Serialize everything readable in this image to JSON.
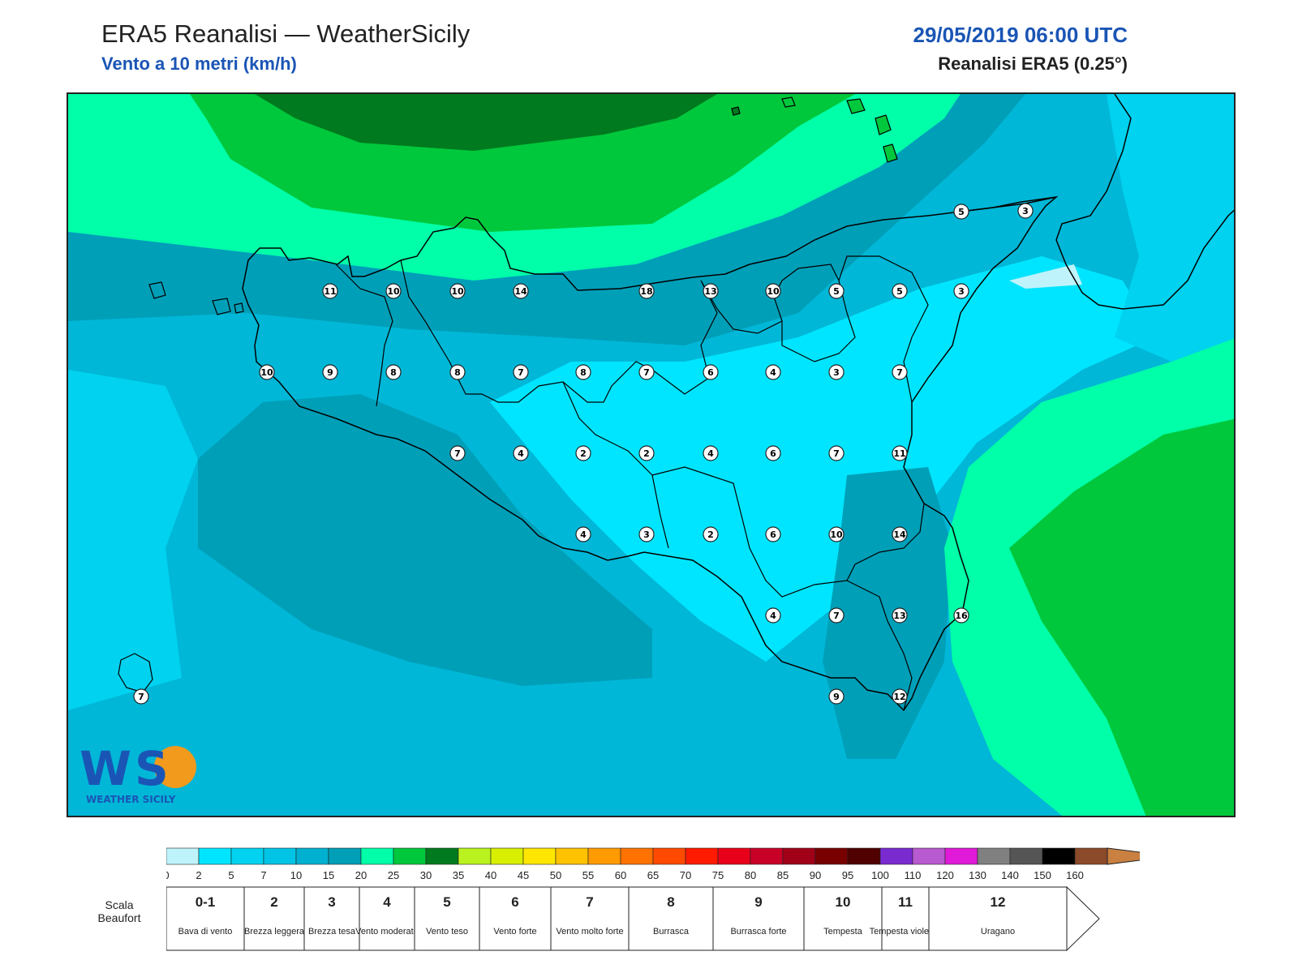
{
  "header": {
    "title": "ERA5 Reanalisi — WeatherSicily",
    "subtitle": "Vento a 10 metri (km/h)",
    "datetime": "29/05/2019 06:00 UTC",
    "model": "Reanalisi ERA5 (0.25°)"
  },
  "colors": {
    "accent": "#1a55b5",
    "wind_0_2": "#bff3fb",
    "wind_2_5": "#00e5ff",
    "wind_5_7": "#00d2f0",
    "wind_7_10": "#00b7d7",
    "wind_10_15": "#009fb8",
    "wind_15_20": "#00ffa8",
    "wind_20_25": "#00c83c",
    "wind_25_30": "#007a1e"
  },
  "colorbar": {
    "ticks": [
      "0",
      "2",
      "5",
      "7",
      "10",
      "15",
      "20",
      "25",
      "30",
      "35",
      "40",
      "45",
      "50",
      "55",
      "60",
      "65",
      "70",
      "75",
      "80",
      "85",
      "90",
      "95",
      "100",
      "110",
      "120",
      "130",
      "140",
      "150",
      "160"
    ],
    "colors": [
      "#bff3fb",
      "#00e5ff",
      "#00d2f0",
      "#00c4e6",
      "#00b0d0",
      "#009fb8",
      "#00ffa8",
      "#00c83c",
      "#007a1e",
      "#b9f21e",
      "#d8f000",
      "#ffe600",
      "#ffc200",
      "#ff9a00",
      "#ff7200",
      "#ff4a00",
      "#ff1a00",
      "#e8001a",
      "#c80028",
      "#a00018",
      "#780000",
      "#500000",
      "#7a2bd0",
      "#b85ad0",
      "#e01ad8",
      "#808080",
      "#555555",
      "#000000",
      "#8b4a2a",
      "#c98040"
    ]
  },
  "beaufort": {
    "label": "Scala Beaufort",
    "cells": [
      {
        "num": "0-1",
        "desc": "Bava di vento"
      },
      {
        "num": "2",
        "desc": "Brezza leggera"
      },
      {
        "num": "3",
        "desc": "Brezza tesa"
      },
      {
        "num": "4",
        "desc": "Vento moderato"
      },
      {
        "num": "5",
        "desc": "Vento teso"
      },
      {
        "num": "6",
        "desc": "Vento forte"
      },
      {
        "num": "7",
        "desc": "Vento molto forte"
      },
      {
        "num": "8",
        "desc": "Burrasca"
      },
      {
        "num": "9",
        "desc": "Burrasca forte"
      },
      {
        "num": "10",
        "desc": "Tempesta"
      },
      {
        "num": "11",
        "desc": "Tempesta violenta"
      },
      {
        "num": "12",
        "desc": "Uragano"
      }
    ]
  },
  "stations": [
    {
      "value": "5"
    },
    {
      "value": "3"
    },
    {
      "value": "11"
    },
    {
      "value": "10"
    },
    {
      "value": "10"
    },
    {
      "value": "14"
    },
    {
      "value": "18"
    },
    {
      "value": "13"
    },
    {
      "value": "10"
    },
    {
      "value": "5"
    },
    {
      "value": "5"
    },
    {
      "value": "3"
    },
    {
      "value": "10"
    },
    {
      "value": "9"
    },
    {
      "value": "8"
    },
    {
      "value": "8"
    },
    {
      "value": "7"
    },
    {
      "value": "8"
    },
    {
      "value": "7"
    },
    {
      "value": "6"
    },
    {
      "value": "4"
    },
    {
      "value": "3"
    },
    {
      "value": "7"
    },
    {
      "value": "7"
    },
    {
      "value": "4"
    },
    {
      "value": "2"
    },
    {
      "value": "2"
    },
    {
      "value": "4"
    },
    {
      "value": "6"
    },
    {
      "value": "7"
    },
    {
      "value": "11"
    },
    {
      "value": "4"
    },
    {
      "value": "3"
    },
    {
      "value": "2"
    },
    {
      "value": "6"
    },
    {
      "value": "10"
    },
    {
      "value": "14"
    },
    {
      "value": "4"
    },
    {
      "value": "7"
    },
    {
      "value": "13"
    },
    {
      "value": "16"
    },
    {
      "value": "9"
    },
    {
      "value": "12"
    },
    {
      "value": "7"
    }
  ],
  "logo": {
    "text": "WS",
    "name": "WEATHER SICILY"
  }
}
